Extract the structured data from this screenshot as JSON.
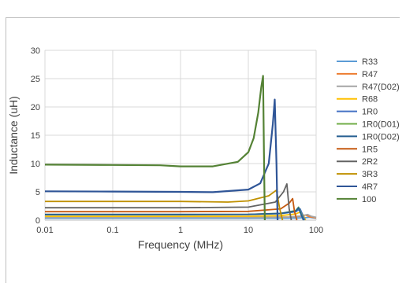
{
  "chart_data": {
    "type": "line",
    "xscale": "log",
    "xlim": [
      0.01,
      100
    ],
    "ylim": [
      0,
      30
    ],
    "xticks": [
      0.01,
      0.1,
      1,
      10,
      100
    ],
    "xtick_labels": [
      "0.01",
      "0.1",
      "1",
      "10",
      "100"
    ],
    "yticks": [
      0,
      5,
      10,
      15,
      20,
      25,
      30
    ],
    "ytick_labels": [
      "0",
      "5",
      "10",
      "15",
      "20",
      "25",
      "30"
    ],
    "xlabel": "Frequency (MHz)",
    "ylabel": "Inductance (uH)",
    "grid": true,
    "legend_position": "right",
    "series": [
      {
        "name": "R33",
        "color": "#5b9bd5",
        "x": [
          0.01,
          1,
          10,
          50,
          70,
          80,
          90,
          100
        ],
        "y": [
          0.33,
          0.33,
          0.34,
          0.38,
          0.45,
          0.5,
          0.4,
          0.35
        ]
      },
      {
        "name": "R47",
        "color": "#ed7d31",
        "x": [
          0.01,
          1,
          10,
          40,
          60,
          70,
          80,
          100
        ],
        "y": [
          0.47,
          0.47,
          0.48,
          0.55,
          0.7,
          0.9,
          0.6,
          0.4
        ]
      },
      {
        "name": "R47(D02)",
        "color": "#a5a5a5",
        "x": [
          0.01,
          1,
          10,
          40,
          60,
          75,
          85,
          100
        ],
        "y": [
          0.47,
          0.47,
          0.48,
          0.55,
          0.75,
          1.0,
          0.7,
          0.5
        ]
      },
      {
        "name": "R68",
        "color": "#ffc000",
        "x": [
          0.01,
          1,
          10,
          30,
          50,
          60,
          65,
          70
        ],
        "y": [
          0.68,
          0.68,
          0.7,
          0.8,
          1.1,
          1.5,
          0.8,
          0
        ]
      },
      {
        "name": "1R0",
        "color": "#4472c4",
        "x": [
          0.01,
          1,
          10,
          30,
          50,
          58,
          63,
          68
        ],
        "y": [
          1.0,
          1.0,
          1.02,
          1.15,
          1.5,
          2.0,
          1.0,
          0
        ]
      },
      {
        "name": "1R0(D01)",
        "color": "#70ad47",
        "x": [
          0.01,
          1,
          10,
          30,
          50,
          55,
          60,
          65
        ],
        "y": [
          1.0,
          1.0,
          1.03,
          1.2,
          1.7,
          2.3,
          1.2,
          0
        ]
      },
      {
        "name": "1R0(D02)",
        "color": "#255e91",
        "x": [
          0.01,
          1,
          10,
          30,
          50,
          55,
          60,
          65
        ],
        "y": [
          1.0,
          1.0,
          1.03,
          1.2,
          1.6,
          2.2,
          1.0,
          0
        ]
      },
      {
        "name": "1R5",
        "color": "#c55a11",
        "x": [
          0.01,
          1,
          10,
          30,
          40,
          45,
          48,
          52
        ],
        "y": [
          1.5,
          1.5,
          1.55,
          2.0,
          3.0,
          3.8,
          1.5,
          0
        ]
      },
      {
        "name": "2R2",
        "color": "#636363",
        "x": [
          0.01,
          1,
          10,
          25,
          33,
          37,
          40,
          43
        ],
        "y": [
          2.2,
          2.2,
          2.3,
          3.2,
          5.0,
          6.4,
          2.0,
          0
        ]
      },
      {
        "name": "3R3",
        "color": "#bf9000",
        "x": [
          0.01,
          1,
          5,
          10,
          20,
          26,
          29,
          32
        ],
        "y": [
          3.3,
          3.3,
          3.2,
          3.4,
          4.3,
          5.3,
          2.0,
          0
        ]
      },
      {
        "name": "4R7",
        "color": "#2f5597",
        "x": [
          0.01,
          0.1,
          1,
          3,
          10,
          15,
          20,
          23,
          24.5,
          26,
          27
        ],
        "y": [
          5.1,
          5.05,
          5.0,
          4.95,
          5.4,
          6.5,
          10.0,
          17.0,
          21.3,
          10.0,
          0
        ]
      },
      {
        "name": "100",
        "color": "#548235",
        "x": [
          0.01,
          0.1,
          0.5,
          1,
          3,
          7,
          10,
          12,
          14,
          15.5,
          16.5,
          17,
          17.5
        ],
        "y": [
          9.8,
          9.75,
          9.7,
          9.5,
          9.5,
          10.3,
          12.0,
          14.5,
          19.0,
          23.5,
          25.5,
          12.0,
          0
        ]
      }
    ]
  }
}
